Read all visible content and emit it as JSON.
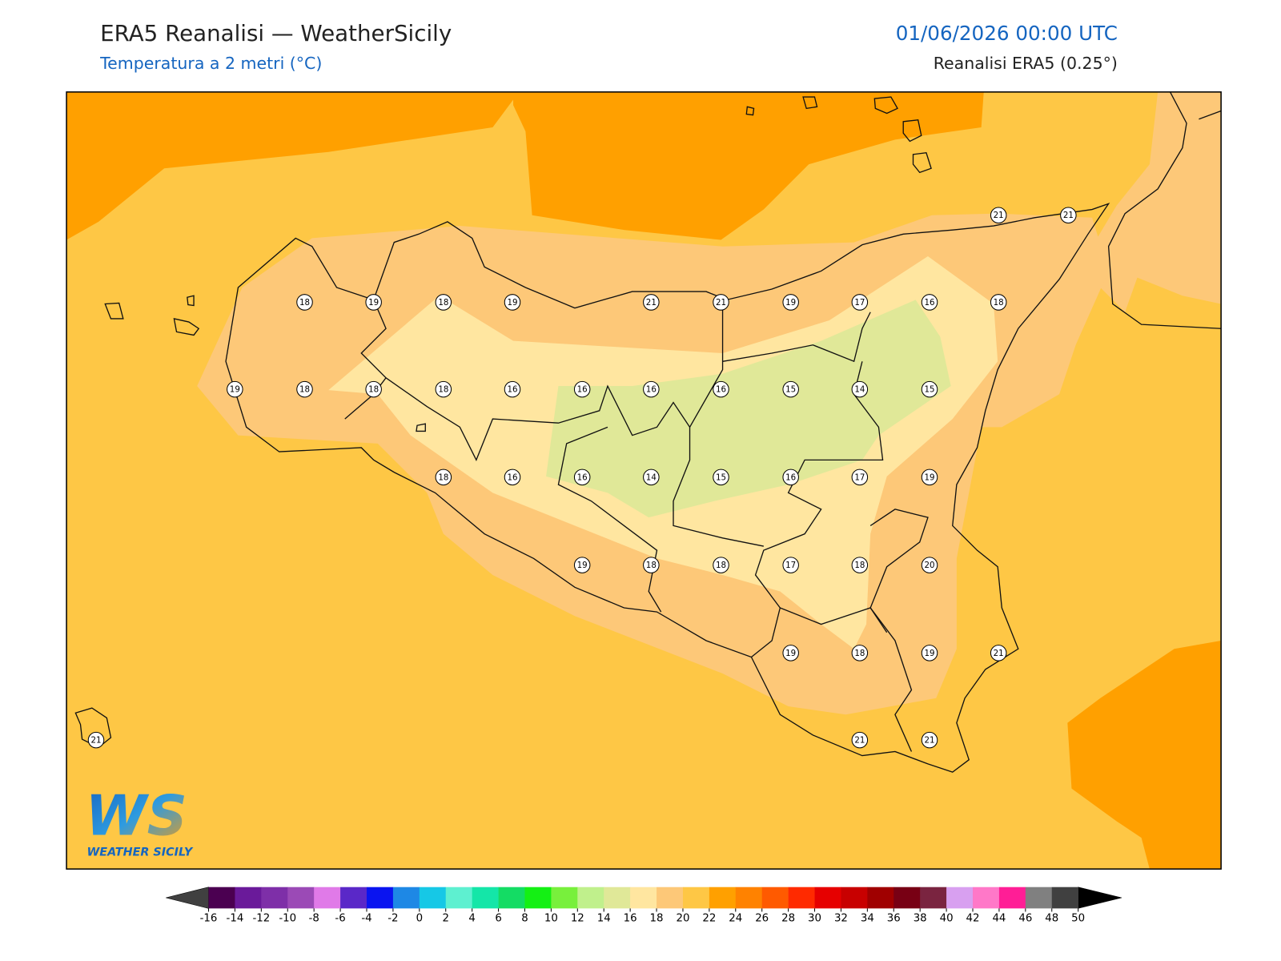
{
  "header": {
    "title": "ERA5 Reanalisi — WeatherSicily",
    "subtitle": "Temperatura a 2 metri (°C)",
    "datetime": "01/06/2026 00:00 UTC",
    "source": "Reanalisi ERA5 (0.25°)"
  },
  "map": {
    "stations": [
      21,
      21,
      18,
      19,
      18,
      19,
      21,
      21,
      19,
      17,
      16,
      18,
      19,
      18,
      18,
      18,
      16,
      16,
      16,
      16,
      15,
      14,
      15,
      18,
      16,
      16,
      14,
      15,
      16,
      17,
      19,
      19,
      18,
      18,
      17,
      18,
      20,
      19,
      18,
      19,
      21,
      21,
      21,
      21
    ]
  },
  "colorbar": {
    "ticks": [
      -16,
      -14,
      -12,
      -10,
      -8,
      -6,
      -4,
      -2,
      0,
      2,
      4,
      6,
      8,
      10,
      12,
      14,
      16,
      18,
      20,
      22,
      24,
      26,
      28,
      30,
      32,
      34,
      36,
      38,
      40,
      42,
      44,
      46,
      48,
      50
    ],
    "colors": [
      "#4b0051",
      "#6a1a9a",
      "#7e2fa8",
      "#9b4ab6",
      "#e07ae8",
      "#5a28c8",
      "#0a14f0",
      "#1e88e5",
      "#16c8e6",
      "#5ef0d0",
      "#14e6a8",
      "#14dc64",
      "#14f014",
      "#78f03c",
      "#c0f08c",
      "#e0e898",
      "#ffe6a0",
      "#fdc878",
      "#fec745",
      "#ffa000",
      "#ff8200",
      "#ff5a00",
      "#ff2a00",
      "#e60000",
      "#c80000",
      "#a00000",
      "#780014",
      "#7a2440",
      "#d8a0f0",
      "#ff78c8",
      "#ff1e96",
      "#808080",
      "#404040"
    ],
    "under_color": "#404040",
    "over_color": "#000000"
  },
  "logo": {
    "letters": "WS",
    "name": "WEATHER SICILY"
  }
}
